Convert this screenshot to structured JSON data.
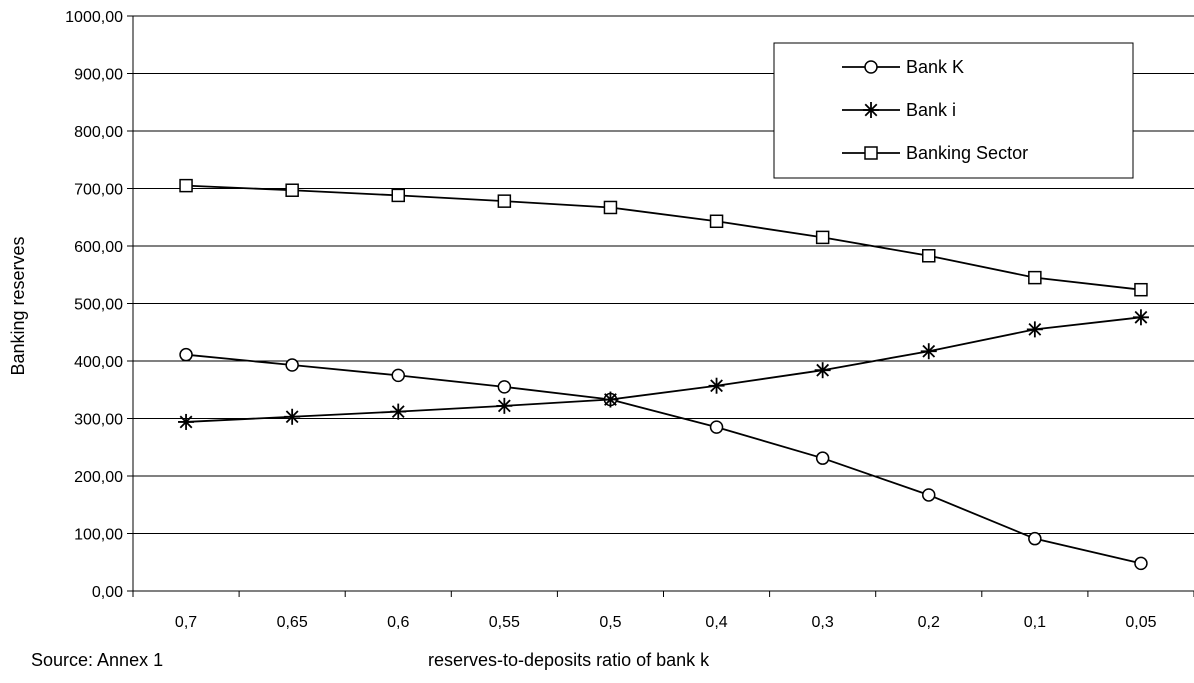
{
  "chart_data": {
    "type": "line",
    "xlabel": "reserves-to-deposits ratio of bank k",
    "ylabel": "Banking reserves",
    "categories": [
      "0,7",
      "0,65",
      "0,6",
      "0,55",
      "0,5",
      "0,4",
      "0,3",
      "0,2",
      "0,1",
      "0,05"
    ],
    "ylim": [
      0,
      1000
    ],
    "y_ticks": [
      0,
      100,
      200,
      300,
      400,
      500,
      600,
      700,
      800,
      900,
      1000
    ],
    "y_tick_labels": [
      "0,00",
      "100,00",
      "200,00",
      "300,00",
      "400,00",
      "500,00",
      "600,00",
      "700,00",
      "800,00",
      "900,00",
      "1000,00"
    ],
    "grid": "horizontal",
    "legend_position": "top-right",
    "series": [
      {
        "name": "Bank K",
        "marker": "circle",
        "values": [
          411,
          393,
          375,
          355,
          333,
          285,
          231,
          167,
          91,
          48
        ]
      },
      {
        "name": "Bank i",
        "marker": "asterisk",
        "values": [
          294,
          303,
          312,
          322,
          333,
          357,
          384,
          417,
          455,
          476
        ]
      },
      {
        "name": "Banking Sector",
        "marker": "square",
        "values": [
          705,
          697,
          688,
          678,
          667,
          643,
          615,
          583,
          545,
          524
        ]
      }
    ],
    "source": "Source: Annex 1"
  }
}
